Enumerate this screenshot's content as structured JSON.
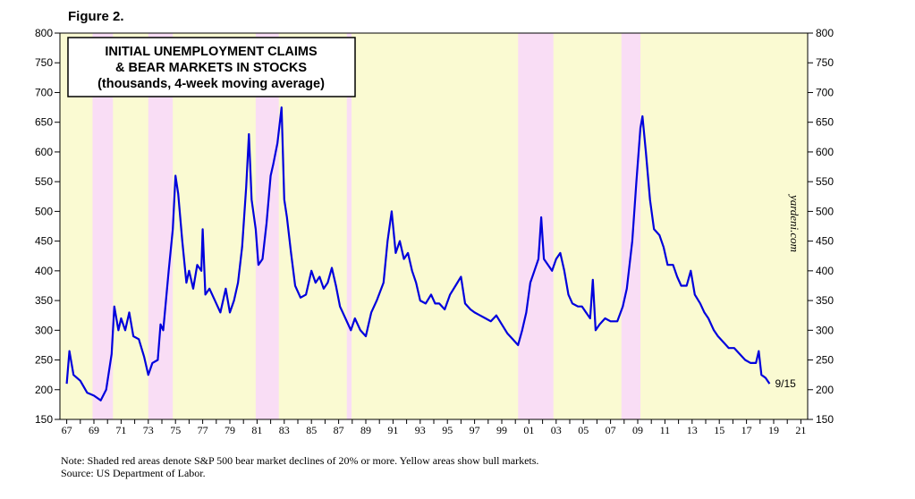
{
  "figure_label": "Figure 2.",
  "chart_data": {
    "type": "line",
    "title": [
      "INITIAL UNEMPLOYMENT CLAIMS",
      "& BEAR MARKETS IN STOCKS",
      "(thousands, 4-week moving average)"
    ],
    "ylim": [
      150,
      800
    ],
    "yticks": [
      150,
      200,
      250,
      300,
      350,
      400,
      450,
      500,
      550,
      600,
      650,
      700,
      750,
      800
    ],
    "xlim": [
      1966.5,
      2021.5
    ],
    "xtick_years": [
      1967,
      1969,
      1971,
      1973,
      1975,
      1977,
      1979,
      1981,
      1983,
      1985,
      1987,
      1989,
      1991,
      1993,
      1995,
      1997,
      1999,
      2001,
      2003,
      2005,
      2007,
      2009,
      2011,
      2013,
      2015,
      2017,
      2019,
      2021
    ],
    "xtick_labels": [
      "67",
      "69",
      "71",
      "73",
      "75",
      "77",
      "79",
      "81",
      "83",
      "85",
      "87",
      "89",
      "91",
      "93",
      "95",
      "97",
      "99",
      "01",
      "03",
      "05",
      "07",
      "09",
      "11",
      "13",
      "15",
      "17",
      "19",
      "21"
    ],
    "bull_market_color": "#fafad2",
    "bear_market_color": "#f9ddf5",
    "line_color": "#0000dd",
    "bear_markets": [
      [
        1968.9,
        1970.4
      ],
      [
        1973.0,
        1974.8
      ],
      [
        1980.9,
        1982.6
      ],
      [
        1987.6,
        1987.95
      ],
      [
        2000.2,
        2002.8
      ],
      [
        2007.8,
        2009.2
      ]
    ],
    "series": [
      {
        "points": [
          [
            1967.0,
            210
          ],
          [
            1967.2,
            265
          ],
          [
            1967.5,
            225
          ],
          [
            1968.0,
            215
          ],
          [
            1968.5,
            195
          ],
          [
            1969.0,
            190
          ],
          [
            1969.5,
            182
          ],
          [
            1969.9,
            200
          ],
          [
            1970.3,
            260
          ],
          [
            1970.5,
            340
          ],
          [
            1970.8,
            300
          ],
          [
            1971.0,
            320
          ],
          [
            1971.3,
            300
          ],
          [
            1971.6,
            330
          ],
          [
            1971.9,
            290
          ],
          [
            1972.3,
            285
          ],
          [
            1972.7,
            255
          ],
          [
            1973.0,
            225
          ],
          [
            1973.3,
            245
          ],
          [
            1973.7,
            250
          ],
          [
            1973.9,
            310
          ],
          [
            1974.1,
            300
          ],
          [
            1974.5,
            400
          ],
          [
            1974.8,
            470
          ],
          [
            1975.0,
            560
          ],
          [
            1975.2,
            530
          ],
          [
            1975.5,
            450
          ],
          [
            1975.8,
            380
          ],
          [
            1976.0,
            400
          ],
          [
            1976.3,
            370
          ],
          [
            1976.6,
            410
          ],
          [
            1976.9,
            400
          ],
          [
            1977.0,
            470
          ],
          [
            1977.2,
            360
          ],
          [
            1977.5,
            370
          ],
          [
            1977.9,
            350
          ],
          [
            1978.3,
            330
          ],
          [
            1978.7,
            370
          ],
          [
            1979.0,
            330
          ],
          [
            1979.3,
            350
          ],
          [
            1979.6,
            380
          ],
          [
            1979.9,
            440
          ],
          [
            1980.2,
            540
          ],
          [
            1980.4,
            630
          ],
          [
            1980.6,
            520
          ],
          [
            1980.9,
            470
          ],
          [
            1981.1,
            410
          ],
          [
            1981.4,
            420
          ],
          [
            1981.7,
            480
          ],
          [
            1982.0,
            560
          ],
          [
            1982.2,
            580
          ],
          [
            1982.5,
            615
          ],
          [
            1982.8,
            675
          ],
          [
            1983.0,
            520
          ],
          [
            1983.2,
            490
          ],
          [
            1983.5,
            430
          ],
          [
            1983.8,
            375
          ],
          [
            1984.2,
            355
          ],
          [
            1984.6,
            360
          ],
          [
            1985.0,
            400
          ],
          [
            1985.3,
            380
          ],
          [
            1985.6,
            390
          ],
          [
            1985.9,
            370
          ],
          [
            1986.2,
            380
          ],
          [
            1986.5,
            405
          ],
          [
            1986.8,
            375
          ],
          [
            1987.1,
            340
          ],
          [
            1987.5,
            320
          ],
          [
            1987.9,
            300
          ],
          [
            1988.2,
            320
          ],
          [
            1988.6,
            300
          ],
          [
            1989.0,
            290
          ],
          [
            1989.4,
            330
          ],
          [
            1989.8,
            350
          ],
          [
            1990.3,
            380
          ],
          [
            1990.6,
            450
          ],
          [
            1990.9,
            500
          ],
          [
            1991.2,
            430
          ],
          [
            1991.5,
            450
          ],
          [
            1991.8,
            420
          ],
          [
            1992.1,
            430
          ],
          [
            1992.4,
            400
          ],
          [
            1992.7,
            380
          ],
          [
            1993.0,
            350
          ],
          [
            1993.4,
            345
          ],
          [
            1993.8,
            360
          ],
          [
            1994.1,
            345
          ],
          [
            1994.4,
            345
          ],
          [
            1994.8,
            335
          ],
          [
            1995.2,
            360
          ],
          [
            1995.6,
            375
          ],
          [
            1996.0,
            390
          ],
          [
            1996.3,
            345
          ],
          [
            1996.7,
            335
          ],
          [
            1997.0,
            330
          ],
          [
            1997.4,
            325
          ],
          [
            1997.8,
            320
          ],
          [
            1998.2,
            315
          ],
          [
            1998.6,
            325
          ],
          [
            1999.0,
            310
          ],
          [
            1999.4,
            295
          ],
          [
            1999.8,
            285
          ],
          [
            2000.2,
            275
          ],
          [
            2000.5,
            300
          ],
          [
            2000.8,
            330
          ],
          [
            2001.1,
            380
          ],
          [
            2001.4,
            400
          ],
          [
            2001.7,
            420
          ],
          [
            2001.9,
            490
          ],
          [
            2002.1,
            420
          ],
          [
            2002.4,
            410
          ],
          [
            2002.7,
            400
          ],
          [
            2003.0,
            420
          ],
          [
            2003.3,
            430
          ],
          [
            2003.6,
            400
          ],
          [
            2003.9,
            360
          ],
          [
            2004.2,
            345
          ],
          [
            2004.6,
            340
          ],
          [
            2004.9,
            340
          ],
          [
            2005.2,
            330
          ],
          [
            2005.5,
            320
          ],
          [
            2005.7,
            385
          ],
          [
            2005.9,
            300
          ],
          [
            2006.2,
            310
          ],
          [
            2006.6,
            320
          ],
          [
            2007.0,
            315
          ],
          [
            2007.5,
            315
          ],
          [
            2007.9,
            340
          ],
          [
            2008.2,
            370
          ],
          [
            2008.6,
            450
          ],
          [
            2008.9,
            550
          ],
          [
            2009.2,
            640
          ],
          [
            2009.35,
            660
          ],
          [
            2009.6,
            600
          ],
          [
            2009.9,
            520
          ],
          [
            2010.2,
            470
          ],
          [
            2010.6,
            460
          ],
          [
            2010.9,
            440
          ],
          [
            2011.2,
            410
          ],
          [
            2011.6,
            410
          ],
          [
            2011.9,
            390
          ],
          [
            2012.2,
            375
          ],
          [
            2012.6,
            375
          ],
          [
            2012.9,
            400
          ],
          [
            2013.2,
            360
          ],
          [
            2013.6,
            345
          ],
          [
            2013.9,
            330
          ],
          [
            2014.2,
            320
          ],
          [
            2014.6,
            300
          ],
          [
            2014.9,
            290
          ],
          [
            2015.3,
            280
          ],
          [
            2015.7,
            270
          ],
          [
            2016.1,
            270
          ],
          [
            2016.5,
            260
          ],
          [
            2016.9,
            250
          ],
          [
            2017.3,
            245
          ],
          [
            2017.7,
            245
          ],
          [
            2017.9,
            265
          ],
          [
            2018.1,
            225
          ],
          [
            2018.4,
            220
          ],
          [
            2018.7,
            210
          ]
        ]
      }
    ],
    "end_label": "9/15",
    "watermark": "yardeni.com"
  },
  "footer": {
    "note": "Note: Shaded red areas denote S&P 500 bear market declines of 20% or more. Yellow areas show bull markets.",
    "source": "Source: US Department of Labor."
  }
}
